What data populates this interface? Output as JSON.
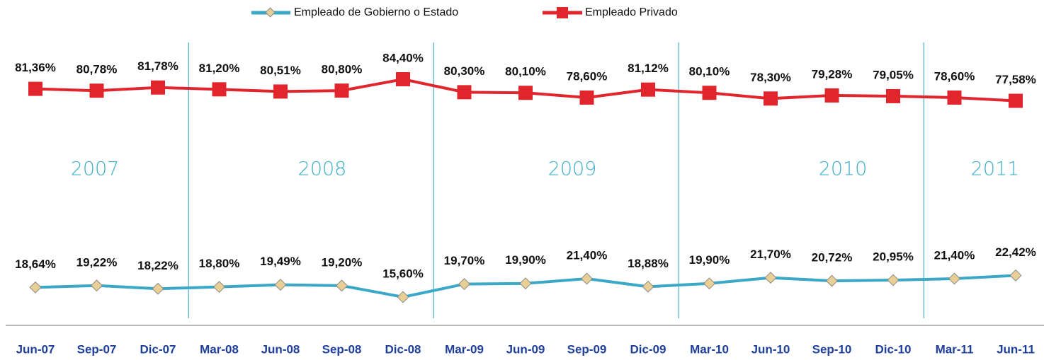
{
  "chart_data": {
    "type": "line",
    "categories": [
      "Jun-07",
      "Sep-07",
      "Dic-07",
      "Mar-08",
      "Jun-08",
      "Sep-08",
      "Dic-08",
      "Mar-09",
      "Jun-09",
      "Sep-09",
      "Dic-09",
      "Mar-10",
      "Jun-10",
      "Sep-10",
      "Dic-10",
      "Mar-11",
      "Jun-11"
    ],
    "series": [
      {
        "name": "Empleado de Gobierno o Estado",
        "color": "#3aa8c6",
        "values": [
          18.64,
          19.22,
          18.22,
          18.8,
          19.49,
          19.2,
          15.6,
          19.7,
          19.9,
          21.4,
          18.88,
          19.9,
          21.7,
          20.72,
          20.95,
          21.4,
          22.42
        ],
        "value_labels": [
          "18,64%",
          "19,22%",
          "18,22%",
          "18,80%",
          "19,49%",
          "19,20%",
          "15,60%",
          "19,70%",
          "19,90%",
          "21,40%",
          "18,88%",
          "19,90%",
          "21,70%",
          "20,72%",
          "20,95%",
          "21,40%",
          "22,42%"
        ]
      },
      {
        "name": "Empleado Privado",
        "color": "#e0252d",
        "values": [
          81.36,
          80.78,
          81.78,
          81.2,
          80.51,
          80.8,
          84.4,
          80.3,
          80.1,
          78.6,
          81.12,
          80.1,
          78.3,
          79.28,
          79.05,
          78.6,
          77.58
        ],
        "value_labels": [
          "81,36%",
          "80,78%",
          "81,78%",
          "81,20%",
          "80,51%",
          "80,80%",
          "84,40%",
          "80,30%",
          "80,10%",
          "78,60%",
          "81,12%",
          "80,10%",
          "78,30%",
          "79,28%",
          "79,05%",
          "78,60%",
          "77,58%"
        ]
      }
    ],
    "annotations": [
      "2007",
      "2008",
      "2009",
      "2010",
      "2011"
    ]
  }
}
